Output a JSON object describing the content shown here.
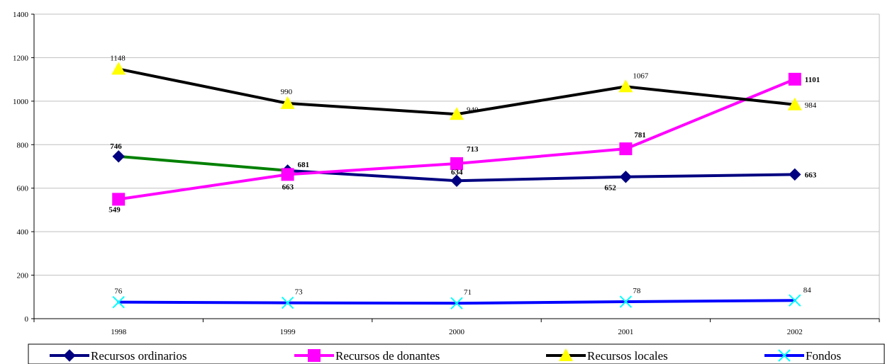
{
  "chart_data": {
    "type": "line",
    "categories": [
      "1998",
      "1999",
      "2000",
      "2001",
      "2002"
    ],
    "ylim": [
      0,
      1400
    ],
    "yticks": [
      0,
      200,
      400,
      600,
      800,
      1000,
      1200,
      1400
    ],
    "ytick_labels": [
      "0",
      "200",
      "400",
      "600",
      "800",
      "1000",
      "1200",
      "1400"
    ],
    "grid": true,
    "legend_position": "bottom",
    "series": [
      {
        "name": "Recursos ordinarios",
        "values": [
          746,
          681,
          634,
          652,
          663
        ],
        "color": "#000080",
        "first_segment_color": "#008000",
        "marker": "diamond",
        "marker_color": "#000080",
        "label_style": "bold",
        "labels": [
          "746",
          "681",
          "634",
          "652",
          "663"
        ]
      },
      {
        "name": "Recursos de donantes",
        "values": [
          549,
          663,
          713,
          781,
          1101
        ],
        "color": "#ff00ff",
        "marker": "square",
        "marker_color": "#ff00ff",
        "label_style": "bold",
        "labels": [
          "549",
          "663",
          "713",
          "781",
          "1101"
        ]
      },
      {
        "name": "Recursos locales",
        "values": [
          1148,
          990,
          940,
          1067,
          984
        ],
        "color": "#000000",
        "marker": "triangle",
        "marker_color": "#ffff00",
        "label_style": "plain",
        "labels": [
          "1148",
          "990",
          "940",
          "1067",
          "984"
        ]
      },
      {
        "name": "Fondos",
        "values": [
          76,
          73,
          71,
          78,
          84
        ],
        "color": "#0000ff",
        "marker": "x",
        "marker_color": "#00ffff",
        "label_style": "plain",
        "labels": [
          "76",
          "73",
          "71",
          "78",
          "84"
        ]
      }
    ]
  }
}
